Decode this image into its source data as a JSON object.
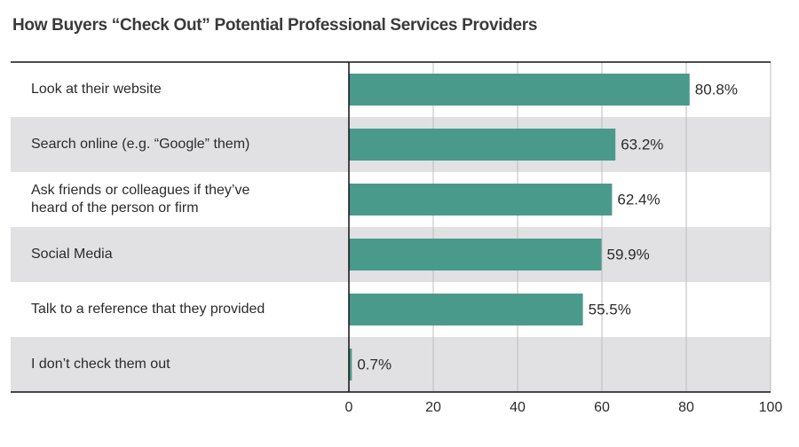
{
  "chart_data": {
    "type": "bar",
    "orientation": "horizontal",
    "title": "How Buyers “Check Out” Potential Professional Services Providers",
    "categories": [
      "Look at their website",
      "Search online (e.g. “Google” them)",
      "Ask friends or colleagues if they’ve heard of the person or firm",
      "Social Media",
      "Talk to a reference that they provided",
      "I don’t check them out"
    ],
    "category_lines": [
      [
        "Look at their website"
      ],
      [
        "Search online (e.g. “Google” them)"
      ],
      [
        "Ask friends or colleagues if they’ve",
        "heard of the person or firm"
      ],
      [
        "Social Media"
      ],
      [
        "Talk to a reference that they provided"
      ],
      [
        "I don’t check them out"
      ]
    ],
    "values": [
      80.8,
      63.2,
      62.4,
      59.9,
      55.5,
      0.7
    ],
    "value_labels": [
      "80.8%",
      "63.2%",
      "62.4%",
      "59.9%",
      "55.5%",
      "0.7%"
    ],
    "xlim": [
      0,
      100
    ],
    "xticks": [
      0,
      20,
      40,
      60,
      80,
      100
    ],
    "xtick_labels": [
      "0",
      "20",
      "40",
      "60",
      "80",
      "100"
    ],
    "grid": true,
    "bar_color": "#4a9a8b",
    "row_band_color": "#e1e1e3",
    "gridline_color": "#bdbdbd",
    "axis_color": "#111111"
  }
}
